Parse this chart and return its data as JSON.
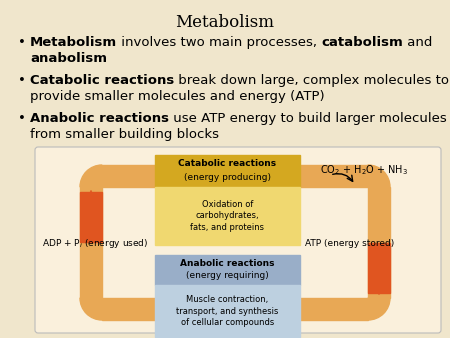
{
  "title": "Metabolism",
  "bg_color": "#f0e6cc",
  "diagram_bg": "#faf0dc",
  "diagram_border": "#cccccc",
  "loop_color": "#e8a855",
  "arrow_color": "#e05520",
  "cat_top_color": "#d4a820",
  "cat_bot_color": "#f0d870",
  "ana_top_color": "#99aec8",
  "ana_bot_color": "#bdd0e0",
  "co2_text": "CO$_2$ + H$_2$O + NH$_3$",
  "adp_text": "ADP + P$_i$ (energy used)",
  "atp_text": "ATP (energy stored)",
  "cat_label1": "Catabolic reactions",
  "cat_label2": "(energy producing)",
  "cat_detail": "Oxidation of\ncarbohydrates,\nfats, and proteins",
  "ana_label1": "Anabolic reactions",
  "ana_label2": "(energy requiring)",
  "ana_detail": "Muscle contraction,\ntransport, and synthesis\nof cellular compounds",
  "bp1_bold1": "Metabolism",
  "bp1_normal1": " involves two main processes, ",
  "bp1_bold2": "catabolism",
  "bp1_normal2": " and",
  "bp1_line2": "anabolism",
  "bp2_bold": "Catabolic reactions",
  "bp2_normal1": " break down large, complex molecules to",
  "bp2_line2": "provide smaller molecules and energy (ATP)",
  "bp3_bold": "Anabolic reactions",
  "bp3_normal1": " use ATP energy to build larger molecules",
  "bp3_line2": "from smaller building blocks"
}
